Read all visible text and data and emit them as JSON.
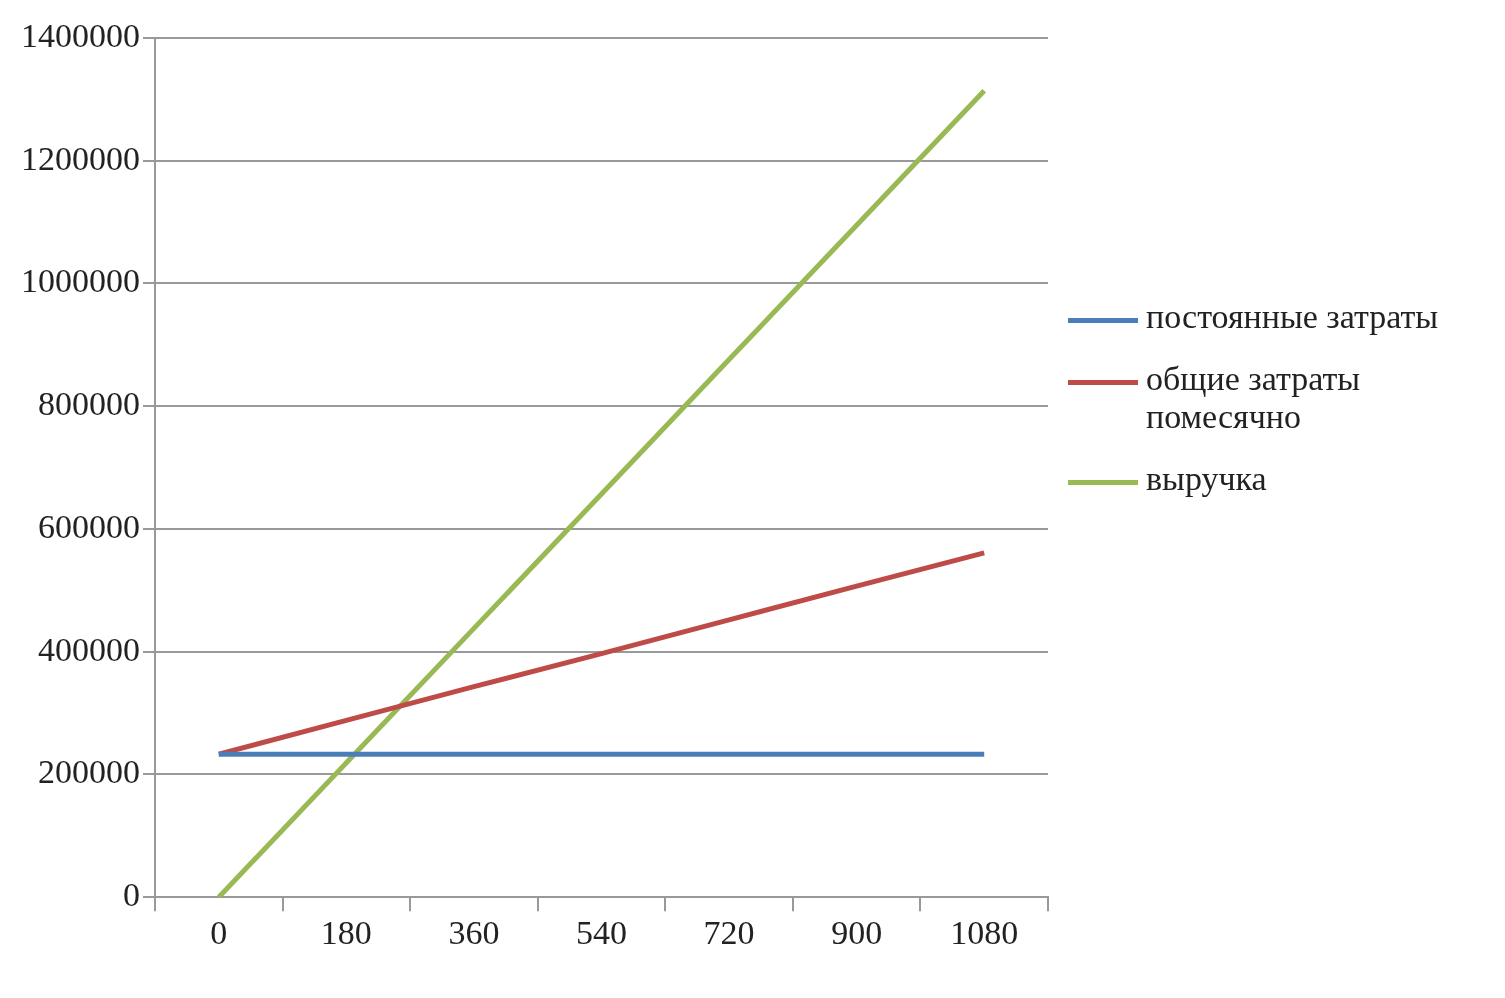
{
  "chart_data": {
    "type": "line",
    "categories": [
      "0",
      "180",
      "360",
      "540",
      "720",
      "900",
      "1080"
    ],
    "series": [
      {
        "name": "постоянные затраты",
        "color": "#4a7ebb",
        "values": [
          233000,
          233000,
          233000,
          233000,
          233000,
          233000,
          233000
        ]
      },
      {
        "name": "общие затраты помесячно",
        "color": "#be4b48",
        "values": [
          233000,
          288000,
          343000,
          397000,
          452000,
          507000,
          561000
        ]
      },
      {
        "name": "выручка",
        "color": "#98b954",
        "values": [
          0,
          219000,
          438000,
          657000,
          876000,
          1095000,
          1314000
        ]
      }
    ],
    "ylim": [
      0,
      1400000
    ],
    "yticks": [
      0,
      200000,
      400000,
      600000,
      800000,
      1000000,
      1200000,
      1400000
    ],
    "grid": "y",
    "legend": "right",
    "marker": "none",
    "line_style": "solid"
  }
}
